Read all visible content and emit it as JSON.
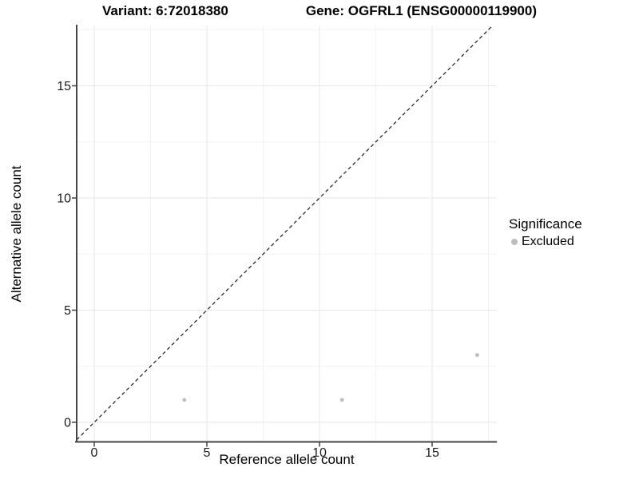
{
  "figure": {
    "title_variant": "Variant: 6:72018380",
    "title_gene": "Gene: OGFRL1 (ENSG00000119900)"
  },
  "chart_data": {
    "type": "scatter",
    "title": "Variant: 6:72018380   Gene: OGFRL1 (ENSG00000119900)",
    "xlabel": "Reference allele count",
    "ylabel": "Alternative allele count",
    "xlim": [
      -0.85,
      17.85
    ],
    "ylim": [
      -0.85,
      17.85
    ],
    "x_major_ticks": [
      0,
      5,
      10,
      15
    ],
    "y_major_ticks": [
      0,
      5,
      10,
      15
    ],
    "x_minor_ticks": [
      2.5,
      7.5,
      12.5,
      17.5
    ],
    "y_minor_ticks": [
      2.5,
      7.5,
      12.5,
      17.5
    ],
    "grid": "major_and_minor",
    "series": [
      {
        "name": "Excluded",
        "color": "#bebebe",
        "points": [
          {
            "x": 4,
            "y": 1
          },
          {
            "x": 11,
            "y": 1
          },
          {
            "x": 17,
            "y": 3
          }
        ]
      }
    ],
    "reference_line": {
      "style": "dashed",
      "color": "#1a1a1a",
      "from": [
        -0.85,
        -0.85
      ],
      "to": [
        17.85,
        17.85
      ]
    },
    "legend": {
      "title": "Significance",
      "position": "right",
      "items": [
        {
          "label": "Excluded",
          "color": "#bebebe"
        }
      ]
    },
    "style_colors": {
      "grid_major": "#e6e6e6",
      "grid_minor": "#f2f2f2",
      "axis_line": "#454545",
      "tick_mark": "#333333",
      "tick_label": "#1a1a1a",
      "point": "#bebebe"
    }
  }
}
